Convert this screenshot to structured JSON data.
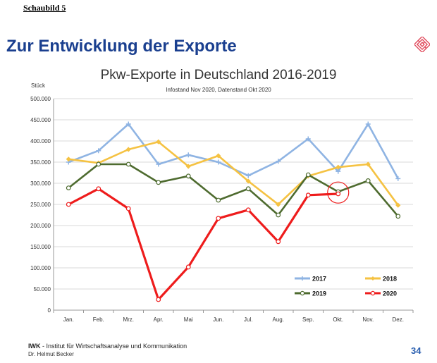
{
  "header": {
    "label": "Schaubild 5",
    "slide_title": "Zur Entwicklung der Exporte"
  },
  "logo": {
    "icon": "maze-logo-icon",
    "color": "#e0485a"
  },
  "footer": {
    "org_abbrev": "IWK",
    "org_rest": " -  Institut  für  Wirtschaftsanalyse  und  Kommunikation",
    "author": "Dr. Helmut Becker",
    "page": "34"
  },
  "chart_data": {
    "type": "line",
    "title": "Pkw-Exporte in Deutschland 2016-2019",
    "subtitle": "Infostand Nov 2020, Datenstand Okt 2020",
    "ylabel": "Stück",
    "xlabel": "",
    "ylim": [
      0,
      500000
    ],
    "y_ticks": [
      0,
      50000,
      100000,
      150000,
      200000,
      250000,
      300000,
      350000,
      400000,
      450000,
      500000
    ],
    "y_tick_labels": [
      "0",
      "50.000",
      "100.000",
      "150.000",
      "200.000",
      "250.000",
      "300.000",
      "350.000",
      "400.000",
      "450.000",
      "500.000"
    ],
    "categories": [
      "Jan.",
      "Feb.",
      "Mrz.",
      "Apr.",
      "Mai",
      "Jun.",
      "Jul.",
      "Aug.",
      "Sep.",
      "Okt.",
      "Nov.",
      "Dez."
    ],
    "grid": true,
    "legend_position": "bottom-right",
    "series": [
      {
        "name": "2017",
        "color": "#8fb4e3",
        "values": [
          350000,
          377000,
          440000,
          345000,
          367000,
          350000,
          318000,
          352000,
          405000,
          328000,
          440000,
          311000
        ]
      },
      {
        "name": "2018",
        "color": "#f5c242",
        "values": [
          357000,
          348000,
          380000,
          398000,
          340000,
          365000,
          305000,
          250000,
          317000,
          338000,
          345000,
          248000
        ]
      },
      {
        "name": "2019",
        "color": "#4e6b2f",
        "values": [
          289000,
          345000,
          345000,
          302000,
          317000,
          260000,
          287000,
          225000,
          320000,
          280000,
          306000,
          222000
        ]
      },
      {
        "name": "2020",
        "color": "#ee1c1c",
        "values": [
          250000,
          287000,
          240000,
          25000,
          102000,
          217000,
          237000,
          162000,
          272000,
          275000,
          null,
          null
        ]
      }
    ],
    "annotation": {
      "type": "circle",
      "category": "Okt.",
      "value": 278000,
      "color": "#ee1c1c"
    }
  }
}
